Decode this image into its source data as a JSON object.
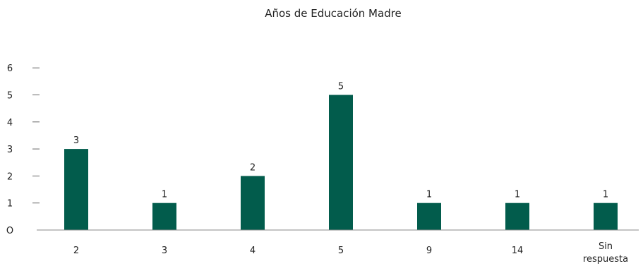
{
  "chart_data": {
    "type": "bar",
    "title": "Años de  Educación Madre",
    "xlabel": "",
    "ylabel": "",
    "categories": [
      "2",
      "3",
      "4",
      "5",
      "9",
      "14",
      "Sin respuesta"
    ],
    "values": [
      3,
      1,
      2,
      5,
      1,
      1,
      1
    ],
    "data_labels": [
      "3",
      "1",
      "2",
      "5",
      "1",
      "1",
      "1"
    ],
    "y_ticks": [
      0,
      1,
      2,
      3,
      4,
      5,
      6
    ],
    "y_tick_labels": [
      "O",
      "1",
      "2",
      "3",
      "4",
      "5",
      "6"
    ],
    "ylim": [
      0,
      6
    ],
    "grid": false,
    "legend": "none",
    "bar_color": "#025c4c"
  }
}
